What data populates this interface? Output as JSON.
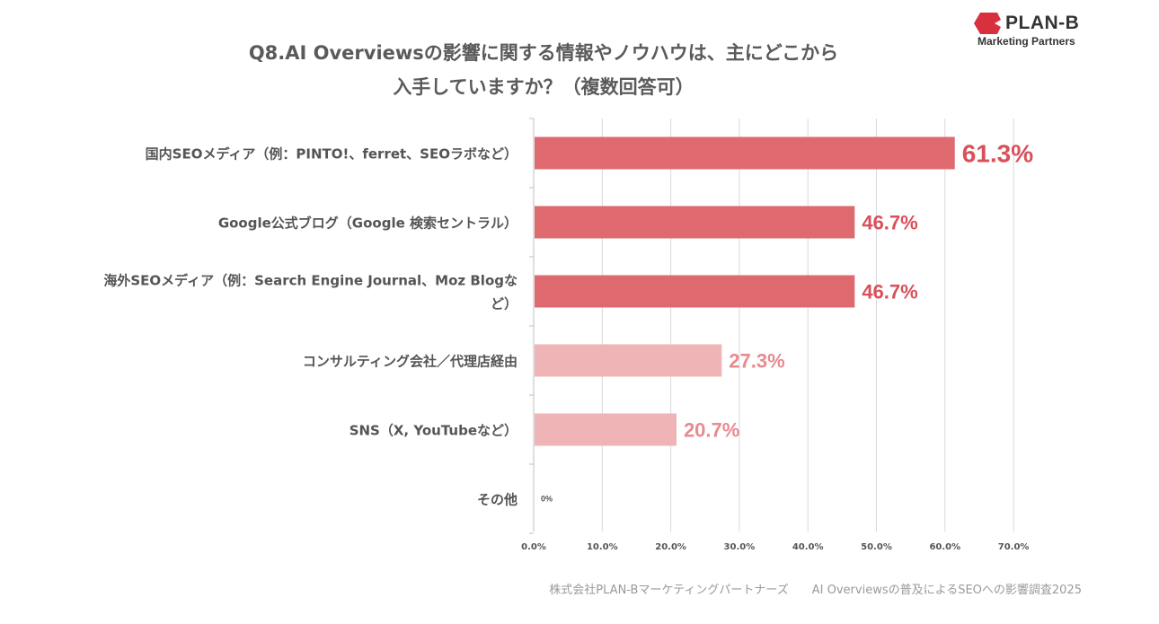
{
  "title": {
    "line1": "Q8.AI Overviewsの影響に関する情報やノウハウは、主にどこから",
    "line2": "入手していますか？（複数回答可）"
  },
  "logo": {
    "name": "PLAN-B",
    "subtitle": "Marketing Partners",
    "mark_color": "#d9303e"
  },
  "footer": {
    "company": "株式会社PLAN-Bマーケティングパートナーズ",
    "survey": "AI Overviewsの普及によるSEOへの影響調査2025"
  },
  "chart_data": {
    "type": "bar",
    "orientation": "horizontal",
    "categories": [
      [
        "国内SEOメディア（例：PINTO!、ferret、SEOラボなど）"
      ],
      [
        "Google公式ブログ（Google 検索セントラル）"
      ],
      [
        "海外SEOメディア（例：Search Engine Journal、Moz Blogな",
        "ど）"
      ],
      [
        "コンサルティング会社／代理店経由"
      ],
      [
        "SNS（X, YouTubeなど）"
      ],
      [
        "その他"
      ]
    ],
    "values": [
      61.3,
      46.7,
      46.7,
      27.3,
      20.7,
      0
    ],
    "value_labels": [
      "61.3%",
      "46.7%",
      "46.7%",
      "27.3%",
      "20.7%",
      "0%"
    ],
    "xlim": [
      0,
      70
    ],
    "x_ticks": [
      "0.0%",
      "10.0%",
      "20.0%",
      "30.0%",
      "40.0%",
      "50.0%",
      "60.0%",
      "70.0%"
    ],
    "grid": true,
    "colors": {
      "highlight": "#de6a6f",
      "normal": "#eeb4b6",
      "highlight_label": "#d9505a",
      "normal_label": "#e88a90",
      "grid": "#d9d9d9",
      "axis": "#bfbfbf"
    },
    "highlight_indices": [
      0,
      1,
      2
    ]
  }
}
